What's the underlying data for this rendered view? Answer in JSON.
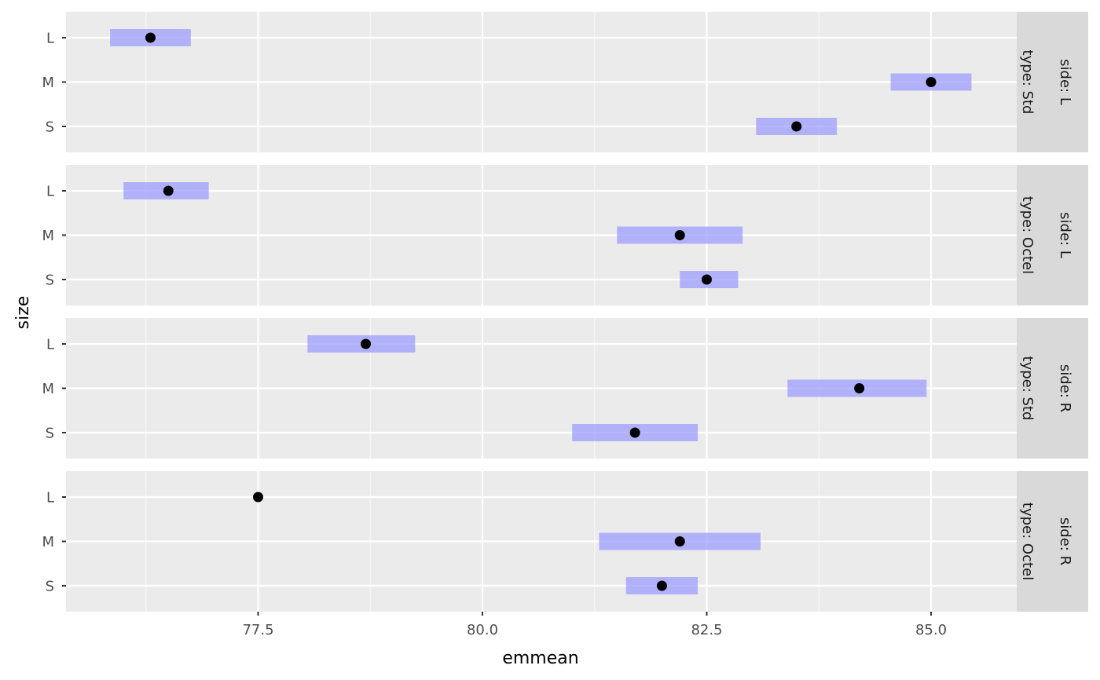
{
  "chart_data": {
    "type": "scatter",
    "subtype": "point-with-interval",
    "xlabel": "emmean",
    "ylabel": "size",
    "xlim": [
      75.7,
      86.0
    ],
    "x_ticks": [
      77.5,
      80.0,
      82.5,
      85.0
    ],
    "x_tick_labels": [
      "77.5",
      "80.0",
      "82.5",
      "85.0"
    ],
    "categories": [
      "L",
      "M",
      "S"
    ],
    "interval_color": "#9999ff",
    "point_color": "#000000",
    "panel_bg": "#ebebeb",
    "strip_bg": "#d9d9d9",
    "grid": true,
    "panels": [
      {
        "strip": [
          "side: L",
          "type: Std"
        ],
        "points": [
          {
            "size": "L",
            "emmean": 76.3,
            "lower": 75.85,
            "upper": 76.75
          },
          {
            "size": "M",
            "emmean": 85.0,
            "lower": 84.55,
            "upper": 85.45
          },
          {
            "size": "S",
            "emmean": 83.5,
            "lower": 83.05,
            "upper": 83.95
          }
        ]
      },
      {
        "strip": [
          "side: L",
          "type: Octel"
        ],
        "points": [
          {
            "size": "L",
            "emmean": 76.5,
            "lower": 76.0,
            "upper": 76.95
          },
          {
            "size": "M",
            "emmean": 82.2,
            "lower": 81.5,
            "upper": 82.9
          },
          {
            "size": "S",
            "emmean": 82.5,
            "lower": 82.2,
            "upper": 82.85
          }
        ]
      },
      {
        "strip": [
          "side: R",
          "type: Std"
        ],
        "points": [
          {
            "size": "L",
            "emmean": 78.7,
            "lower": 78.05,
            "upper": 79.25
          },
          {
            "size": "M",
            "emmean": 84.2,
            "lower": 83.4,
            "upper": 84.95
          },
          {
            "size": "S",
            "emmean": 81.7,
            "lower": 81.0,
            "upper": 82.4
          }
        ]
      },
      {
        "strip": [
          "side: R",
          "type: Octel"
        ],
        "points": [
          {
            "size": "L",
            "emmean": 77.5,
            "lower": null,
            "upper": null
          },
          {
            "size": "M",
            "emmean": 82.2,
            "lower": 81.3,
            "upper": 83.1
          },
          {
            "size": "S",
            "emmean": 82.0,
            "lower": 81.6,
            "upper": 82.4
          }
        ]
      }
    ]
  }
}
